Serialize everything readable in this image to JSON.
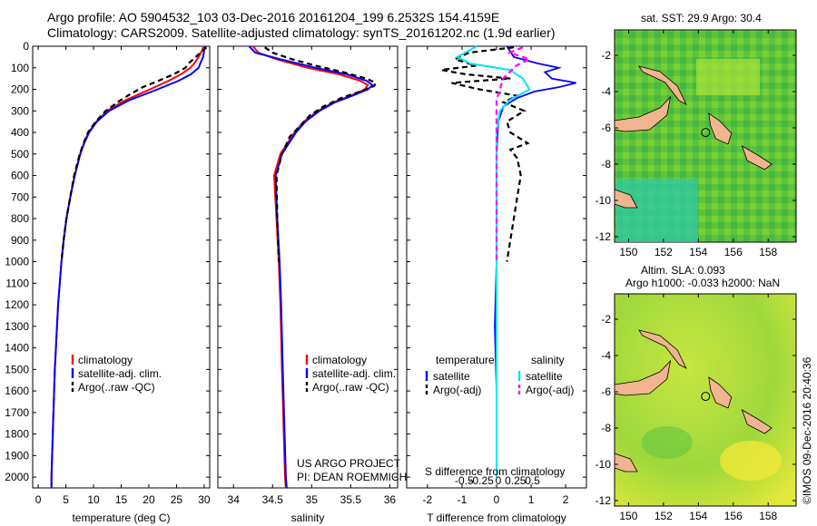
{
  "header": {
    "line1": "Argo profile: AO 5904532_103 03-Dec-2016 20161204_199 6.2532S 154.4159E",
    "line2": "Climatology: CARS2009. Satellite-adjusted climatology: synTS_20161202.nc (1.9d earlier)"
  },
  "colors": {
    "climatology": "#ff0000",
    "satellite": "#0000ff",
    "argo": "#000000",
    "salinity_satellite": "#00e5ee",
    "salinity_argo": "#ff00ff",
    "land": "#f0b58f"
  },
  "maps": {
    "sst_title": "sat. SST: 29.9 Argo: 30.4",
    "sla_title_1": "Altim. SLA: 0.093",
    "sla_title_2": "Argo h1000: -0.033 h2000: NaN",
    "lon_ticks": [
      "150",
      "152",
      "154",
      "156",
      "158"
    ],
    "lat_ticks": [
      "-2",
      "-4",
      "-6",
      "-8",
      "-10",
      "-12"
    ],
    "xlim": [
      149.2,
      159.6
    ],
    "ylim": [
      -12.3,
      -0.6
    ],
    "argo_position": {
      "lon": 154.4159,
      "lat": -6.2532
    }
  },
  "credit": {
    "imos": "©IMOS 09-Dec-2016 20:40:36",
    "project_1": "US ARGO PROJECT",
    "project_2": "PI: DEAN ROEMMICH"
  },
  "chart_data": [
    {
      "type": "line",
      "xlabel": "temperature (deg C)",
      "ylabel": "",
      "xlim": [
        -1,
        31
      ],
      "ylim": [
        2050,
        0
      ],
      "x_ticks": [
        0,
        5,
        10,
        15,
        20,
        25,
        30
      ],
      "y_ticks": [
        0,
        100,
        200,
        300,
        400,
        500,
        600,
        700,
        800,
        900,
        1000,
        1100,
        1200,
        1300,
        1400,
        1500,
        1600,
        1700,
        1800,
        1900,
        2000
      ],
      "legend": [
        "climatology",
        "satellite-adj. clim.",
        "Argo(..raw -QC)"
      ],
      "series": [
        {
          "name": "climatology",
          "depth": [
            0,
            20,
            50,
            80,
            100,
            130,
            160,
            200,
            250,
            300,
            350,
            400,
            450,
            500,
            600,
            700,
            800,
            900,
            1000,
            1200,
            1500,
            1750,
            2000,
            2050
          ],
          "values": [
            29.9,
            29.6,
            29.0,
            28.2,
            27.5,
            25.8,
            23.6,
            20.2,
            15.8,
            12.4,
            10.5,
            9.1,
            8.3,
            7.6,
            6.6,
            5.8,
            5.1,
            4.6,
            4.2,
            3.6,
            3.0,
            2.7,
            2.4,
            2.4
          ]
        },
        {
          "name": "satellite-adj. clim.",
          "depth": [
            0,
            20,
            50,
            80,
            100,
            130,
            160,
            200,
            250,
            300,
            350,
            400,
            450,
            500,
            600,
            700,
            800,
            900,
            1000,
            1200,
            1500,
            1750,
            2000,
            2050
          ],
          "values": [
            30.2,
            30.0,
            29.8,
            29.3,
            29.0,
            27.6,
            25.4,
            21.6,
            16.5,
            12.8,
            10.6,
            9.2,
            8.3,
            7.6,
            6.6,
            5.8,
            5.1,
            4.6,
            4.2,
            3.6,
            3.0,
            2.7,
            2.4,
            2.4
          ]
        },
        {
          "name": "Argo(..raw -QC)",
          "depth": [
            5,
            20,
            40,
            60,
            80,
            100,
            130,
            160,
            190,
            220,
            250,
            300,
            350,
            400,
            450,
            500,
            600,
            700,
            800,
            900,
            1000
          ],
          "values": [
            30.4,
            29.8,
            28.9,
            28.0,
            27.2,
            26.6,
            24.5,
            21.8,
            18.9,
            16.8,
            14.9,
            12.2,
            10.4,
            9.0,
            8.2,
            7.5,
            6.5,
            5.8,
            5.1,
            4.6,
            4.2
          ]
        }
      ]
    },
    {
      "type": "line",
      "xlabel": "salinity",
      "ylabel": "",
      "xlim": [
        33.8,
        36.1
      ],
      "ylim": [
        2050,
        0
      ],
      "x_ticks": [
        34,
        34.5,
        35,
        35.5,
        36
      ],
      "legend": [
        "climatology",
        "satellite-adj. clim.",
        "Argo(..raw -QC)"
      ],
      "series": [
        {
          "name": "climatology",
          "depth": [
            0,
            30,
            60,
            100,
            130,
            160,
            180,
            200,
            230,
            260,
            300,
            350,
            400,
            500,
            600,
            800,
            1000,
            1200,
            1500,
            2000,
            2050
          ],
          "values": [
            34.25,
            34.32,
            34.55,
            34.95,
            35.35,
            35.62,
            35.72,
            35.68,
            35.5,
            35.28,
            35.08,
            34.9,
            34.78,
            34.6,
            34.52,
            34.55,
            34.58,
            34.6,
            34.62,
            34.66,
            34.67
          ]
        },
        {
          "name": "satellite-adj. clim.",
          "depth": [
            0,
            30,
            60,
            100,
            130,
            160,
            180,
            200,
            230,
            260,
            300,
            350,
            400,
            500,
            600,
            800,
            1000,
            1200,
            1500,
            2000,
            2050
          ],
          "values": [
            34.2,
            34.28,
            34.6,
            35.05,
            35.45,
            35.7,
            35.78,
            35.72,
            35.52,
            35.3,
            35.1,
            34.92,
            34.8,
            34.62,
            34.54,
            34.56,
            34.59,
            34.61,
            34.63,
            34.67,
            34.68
          ]
        },
        {
          "name": "Argo(..raw -QC)",
          "depth": [
            5,
            30,
            60,
            90,
            120,
            150,
            170,
            185,
            210,
            240,
            280,
            320,
            370,
            420,
            500,
            600,
            800,
            1000
          ],
          "values": [
            34.4,
            34.5,
            34.75,
            35.05,
            35.4,
            35.7,
            35.82,
            35.8,
            35.62,
            35.38,
            35.15,
            34.98,
            34.85,
            34.72,
            34.62,
            34.55,
            34.56,
            34.58
          ]
        }
      ]
    },
    {
      "type": "line",
      "xlabel": "T difference from climatology",
      "x2label": "S difference from climatology",
      "xlim": [
        -2.6,
        2.6
      ],
      "ylim": [
        2050,
        0
      ],
      "x_ticks": [
        -2,
        -1,
        0,
        1,
        2
      ],
      "x2_ticks": [
        -0.5,
        -0.25,
        0,
        0.25,
        0.5
      ],
      "legend_title_t": "temperature",
      "legend_title_s": "salinity",
      "legend": [
        "satellite",
        "Argo(-adj)",
        "satellite",
        "Argo(-adj)"
      ],
      "series": [
        {
          "name": "satellite",
          "quantity": "temperature",
          "depth": [
            0,
            50,
            80,
            100,
            120,
            150,
            170,
            190,
            210,
            240,
            280,
            350,
            500,
            700,
            1000,
            1300,
            1600,
            2000
          ],
          "values": [
            0.3,
            0.5,
            1.2,
            1.8,
            1.4,
            1.6,
            2.3,
            1.8,
            1.1,
            0.6,
            0.2,
            0.05,
            0.0,
            0.0,
            0.0,
            -0.05,
            0.0,
            0.0
          ]
        },
        {
          "name": "Argo(-adj)",
          "quantity": "temperature",
          "depth": [
            5,
            30,
            60,
            90,
            110,
            130,
            150,
            170,
            200,
            230,
            260,
            300,
            350,
            400,
            450,
            480,
            520,
            600,
            700,
            800,
            900,
            1000
          ],
          "values": [
            0.5,
            -0.8,
            -1.2,
            -0.6,
            -1.6,
            -0.9,
            0.4,
            -1.3,
            -0.5,
            0.6,
            0.2,
            0.8,
            0.3,
            0.4,
            0.9,
            0.4,
            0.6,
            0.7,
            0.6,
            0.5,
            0.4,
            0.3
          ]
        },
        {
          "name": "satellite",
          "quantity": "salinity",
          "depth": [
            0,
            50,
            80,
            110,
            150,
            200,
            250,
            300,
            400,
            600,
            900,
            1300,
            1700,
            2000
          ],
          "values": [
            -0.3,
            -0.6,
            -0.4,
            0.2,
            0.4,
            0.5,
            0.2,
            0.05,
            0.0,
            0.0,
            0.0,
            0.0,
            0.0,
            0.0
          ]
        },
        {
          "name": "Argo(-adj)",
          "quantity": "salinity",
          "depth": [
            5,
            30,
            60,
            90,
            120,
            150,
            200,
            250,
            300,
            350,
            400,
            600,
            800,
            1000
          ],
          "values": [
            0.4,
            0.2,
            0.5,
            0.3,
            0.2,
            0.1,
            0.05,
            0.0,
            0.0,
            0.0,
            0.0,
            0.0,
            0.0,
            0.0
          ]
        }
      ]
    }
  ]
}
